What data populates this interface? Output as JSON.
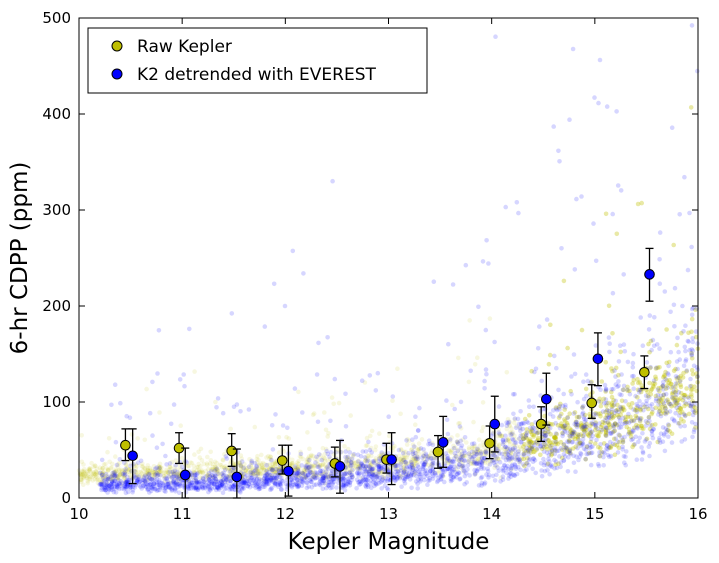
{
  "chart_data": {
    "type": "scatter",
    "xlabel": "Kepler Magnitude",
    "ylabel": "6-hr CDPP (ppm)",
    "xlim": [
      10,
      16
    ],
    "ylim": [
      0,
      500
    ],
    "x_ticks": [
      "10",
      "11",
      "12",
      "13",
      "14",
      "15",
      "16"
    ],
    "y_ticks": [
      "0",
      "100",
      "200",
      "300",
      "400",
      "500"
    ],
    "legend_position": "top-left",
    "grid": false,
    "series": [
      {
        "name": "Raw Kepler",
        "color": "#bfbf00",
        "marker": "circle",
        "binned": [
          {
            "x": 10.45,
            "y": 55,
            "err_low": 39,
            "err_high": 72
          },
          {
            "x": 10.97,
            "y": 52,
            "err_low": 36,
            "err_high": 68
          },
          {
            "x": 11.48,
            "y": 49,
            "err_low": 33,
            "err_high": 67
          },
          {
            "x": 11.97,
            "y": 39,
            "err_low": 25,
            "err_high": 55
          },
          {
            "x": 12.48,
            "y": 36,
            "err_low": 22,
            "err_high": 53
          },
          {
            "x": 12.98,
            "y": 40,
            "err_low": 26,
            "err_high": 57
          },
          {
            "x": 13.48,
            "y": 48,
            "err_low": 31,
            "err_high": 65
          },
          {
            "x": 13.98,
            "y": 57,
            "err_low": 41,
            "err_high": 75
          },
          {
            "x": 14.48,
            "y": 77,
            "err_low": 59,
            "err_high": 95
          },
          {
            "x": 14.97,
            "y": 99,
            "err_low": 83,
            "err_high": 118
          },
          {
            "x": 15.48,
            "y": 131,
            "err_low": 114,
            "err_high": 148
          }
        ]
      },
      {
        "name": "K2 detrended with EVEREST",
        "color": "#0000ff",
        "marker": "circle",
        "binned": [
          {
            "x": 10.52,
            "y": 44,
            "err_low": 15,
            "err_high": 72
          },
          {
            "x": 11.03,
            "y": 24,
            "err_low": 0,
            "err_high": 52
          },
          {
            "x": 11.53,
            "y": 22,
            "err_low": 0,
            "err_high": 51
          },
          {
            "x": 12.03,
            "y": 28,
            "err_low": 2,
            "err_high": 55
          },
          {
            "x": 12.53,
            "y": 33,
            "err_low": 5,
            "err_high": 60
          },
          {
            "x": 13.03,
            "y": 40,
            "err_low": 14,
            "err_high": 68
          },
          {
            "x": 13.53,
            "y": 58,
            "err_low": 32,
            "err_high": 85
          },
          {
            "x": 14.03,
            "y": 77,
            "err_low": 48,
            "err_high": 106
          },
          {
            "x": 14.53,
            "y": 103,
            "err_low": 76,
            "err_high": 130
          },
          {
            "x": 15.03,
            "y": 145,
            "err_low": 117,
            "err_high": 172
          },
          {
            "x": 15.53,
            "y": 233,
            "err_low": 205,
            "err_high": 260
          }
        ]
      }
    ]
  }
}
